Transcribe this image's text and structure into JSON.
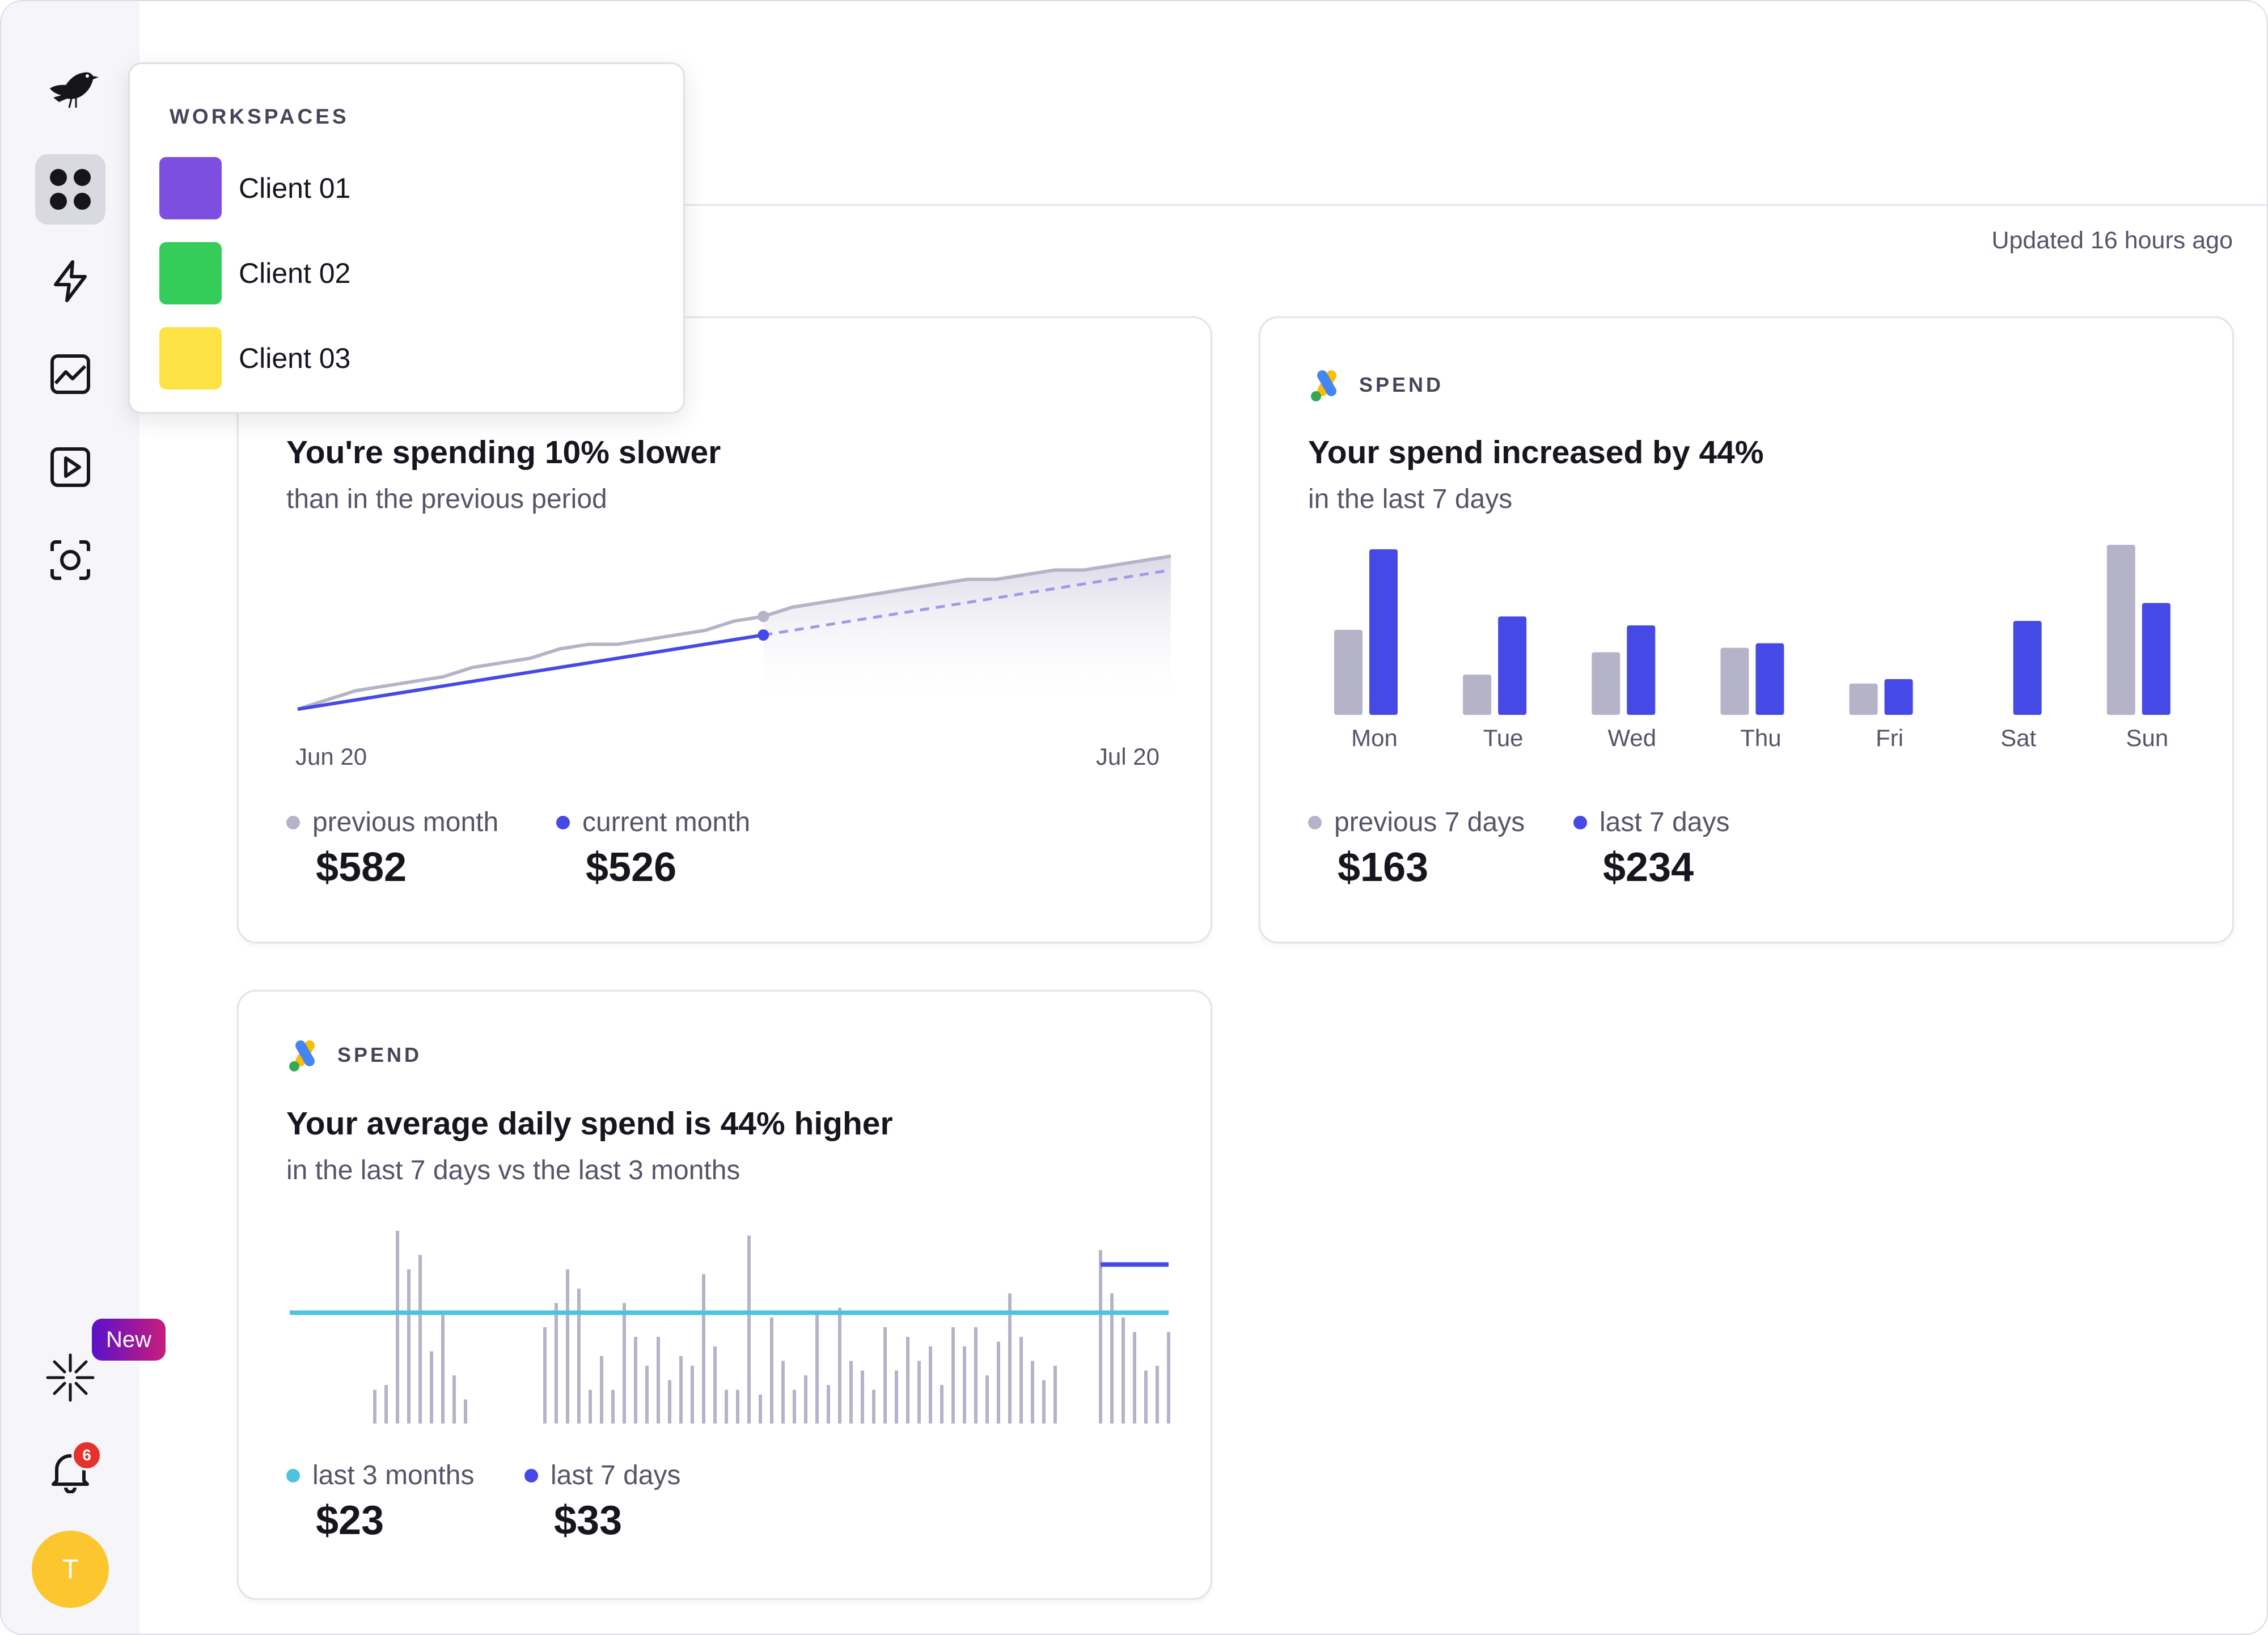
{
  "updated_text": "Updated 16 hours ago",
  "popup": {
    "title": "WORKSPACES",
    "items": [
      {
        "label": "Client 01",
        "color": "#7e4ee0"
      },
      {
        "label": "Client 02",
        "color": "#35cc5a"
      },
      {
        "label": "Client 03",
        "color": "#fde246"
      }
    ]
  },
  "sidebar": {
    "icons": [
      "bird-logo-icon",
      "grid-icon",
      "lightning-icon",
      "chart-icon",
      "play-icon",
      "scan-icon",
      "sparkle-icon",
      "bell-icon"
    ],
    "new_badge": "New",
    "notification_count": "6",
    "avatar_initial": "T"
  },
  "colors": {
    "previous": "#b5b3c7",
    "current": "#4549e6",
    "baseline": "#4ec3dd"
  },
  "card1": {
    "title": "You're spending 10% slower",
    "subtitle": "than in the previous period",
    "x_start": "Jun 20",
    "x_end": "Jul 20",
    "legend": [
      {
        "label": "previous month",
        "value": "$582"
      },
      {
        "label": "current month",
        "value": "$526"
      }
    ]
  },
  "card2": {
    "header": "SPEND",
    "title": "Your spend increased by 44%",
    "subtitle": "in the last 7 days",
    "legend": [
      {
        "label": "previous 7 days",
        "value": "$163"
      },
      {
        "label": "last 7 days",
        "value": "$234"
      }
    ]
  },
  "card3": {
    "header": "SPEND",
    "title": "Your average daily spend is 44% higher",
    "subtitle": "in the last 7 days vs the last 3 months",
    "legend": [
      {
        "label": "last 3 months",
        "value": "$23"
      },
      {
        "label": "last 7 days",
        "value": "$33"
      }
    ]
  },
  "chart_data": [
    {
      "type": "line",
      "title": "You're spending 10% slower",
      "x_ticks": [
        "Jun 20",
        "Jul 20"
      ],
      "series": [
        {
          "name": "previous month",
          "values": [
            0,
            2,
            4,
            5,
            6,
            7,
            9,
            10,
            11,
            13,
            14,
            14,
            15,
            16,
            17,
            19,
            20,
            22,
            23,
            24,
            25,
            26,
            27,
            28,
            28,
            29,
            30,
            30,
            31,
            32,
            33
          ]
        },
        {
          "name": "current month",
          "values": [
            0,
            1,
            2,
            3,
            4,
            5,
            6,
            7,
            8,
            9,
            10,
            11,
            12,
            13,
            14,
            15,
            16,
            17,
            18,
            19,
            20,
            21,
            22,
            23,
            24,
            25,
            26,
            27,
            28,
            29,
            30
          ],
          "actual_points": 17
        }
      ]
    },
    {
      "type": "bar",
      "title": "Your spend increased by 44%",
      "categories": [
        "Mon",
        "Tue",
        "Wed",
        "Thu",
        "Fri",
        "Sat",
        "Sun"
      ],
      "series": [
        {
          "name": "previous 7 days",
          "values": [
            19,
            9,
            14,
            15,
            7,
            0,
            38
          ]
        },
        {
          "name": "last 7 days",
          "values": [
            37,
            22,
            20,
            16,
            8,
            21,
            25
          ]
        }
      ]
    },
    {
      "type": "bar",
      "title": "Your average daily spend is 44% higher",
      "series": [
        {
          "name": "last 3 months",
          "average": 23,
          "values": [
            0,
            0,
            0,
            0,
            0,
            0,
            0,
            7,
            8,
            40,
            32,
            35,
            15,
            23,
            10,
            5,
            0,
            0,
            0,
            0,
            0,
            0,
            20,
            25,
            32,
            28,
            7,
            14,
            7,
            25,
            18,
            12,
            18,
            9,
            14,
            12,
            31,
            16,
            7,
            7,
            39,
            6,
            22,
            13,
            7,
            10,
            23,
            8,
            24,
            13,
            11,
            7,
            20,
            11,
            18,
            13,
            16,
            8,
            20,
            16,
            20,
            10,
            17,
            27,
            18,
            13,
            9,
            12,
            0,
            0,
            0,
            6,
            0,
            0,
            0,
            0,
            0,
            0
          ]
        },
        {
          "name": "last 7 days",
          "average": 33,
          "values": [
            36,
            27,
            22,
            19,
            11,
            12,
            19
          ]
        }
      ]
    }
  ]
}
